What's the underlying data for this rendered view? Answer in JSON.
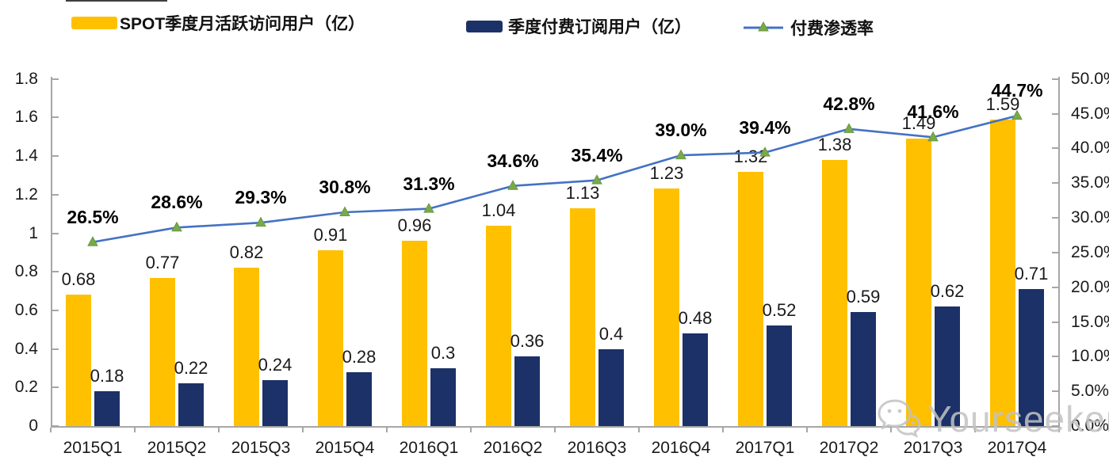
{
  "chart_data": {
    "type": "combo",
    "categories": [
      "2015Q1",
      "2015Q2",
      "2015Q3",
      "2015Q4",
      "2016Q1",
      "2016Q2",
      "2016Q3",
      "2016Q4",
      "2017Q1",
      "2017Q2",
      "2017Q3",
      "2017Q4"
    ],
    "series": [
      {
        "name": "SPOT季度月活跃访问用户（亿）",
        "type": "bar",
        "axis": "left",
        "color": "#FFC000",
        "values": [
          0.68,
          0.77,
          0.82,
          0.91,
          0.96,
          1.04,
          1.13,
          1.23,
          1.32,
          1.38,
          1.49,
          1.59
        ],
        "labels": [
          "0.68",
          "0.77",
          "0.82",
          "0.91",
          "0.96",
          "1.04",
          "1.13",
          "1.23",
          "1.32",
          "1.38",
          "1.49",
          "1.59"
        ]
      },
      {
        "name": "季度付费订阅用户（亿）",
        "type": "bar",
        "axis": "left",
        "color": "#1B3168",
        "values": [
          0.18,
          0.22,
          0.24,
          0.28,
          0.3,
          0.36,
          0.4,
          0.48,
          0.52,
          0.59,
          0.62,
          0.71
        ],
        "labels": [
          "0.18",
          "0.22",
          "0.24",
          "0.28",
          "0.3",
          "0.36",
          "0.4",
          "0.48",
          "0.52",
          "0.59",
          "0.62",
          "0.71"
        ]
      },
      {
        "name": "付费渗透率",
        "type": "line",
        "axis": "right",
        "color": "#4472C4",
        "marker": "triangle",
        "marker_color": "#79A949",
        "values": [
          26.5,
          28.6,
          29.3,
          30.8,
          31.3,
          34.6,
          35.4,
          39.0,
          39.4,
          42.8,
          41.6,
          44.7
        ],
        "labels": [
          "26.5%",
          "28.6%",
          "29.3%",
          "30.8%",
          "31.3%",
          "34.6%",
          "35.4%",
          "39.0%",
          "39.4%",
          "42.8%",
          "41.6%",
          "44.7%"
        ]
      }
    ],
    "left_axis": {
      "min": 0,
      "max": 1.8,
      "tick_values": [
        1.8,
        1.6,
        1.4,
        1.2,
        1.0,
        0.8,
        0.6,
        0.4,
        0.2,
        0
      ],
      "tick_labels": [
        "1.8",
        "1.6",
        "1.4",
        "1.2",
        "1",
        "0.8",
        "0.6",
        "0.4",
        "0.2",
        "0"
      ]
    },
    "right_axis": {
      "min": 0,
      "max": 50,
      "tick_values": [
        50,
        45,
        40,
        35,
        30,
        25,
        20,
        15,
        10,
        5,
        0
      ],
      "tick_labels": [
        "50.0%",
        "45.0%",
        "40.0%",
        "35.0%",
        "30.0%",
        "25.0%",
        "20.0%",
        "15.0%",
        "10.0%",
        "5.0%",
        "0.0%"
      ]
    },
    "grid": false,
    "legend_position": "top"
  },
  "watermark": {
    "text": "Yourseeker",
    "icon": "wechat-icon"
  },
  "colors": {
    "axis": "#a6a6a6",
    "bar_mau": "#FFC000",
    "bar_subs": "#1B3168",
    "line": "#4472C4",
    "marker": "#79A949",
    "watermark": "#c3c3c3"
  }
}
